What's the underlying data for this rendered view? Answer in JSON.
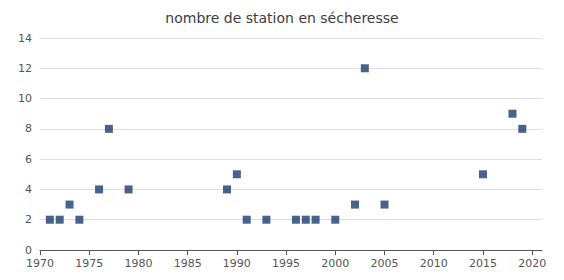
{
  "chart_data": {
    "type": "scatter",
    "title": "nombre de station en sécheresse",
    "x": [
      1971,
      1972,
      1973,
      1974,
      1976,
      1977,
      1979,
      1989,
      1990,
      1991,
      1993,
      1996,
      1997,
      1998,
      2000,
      2002,
      2003,
      2005,
      2015,
      2018,
      2019
    ],
    "values": [
      2,
      2,
      3,
      2,
      4,
      8,
      4,
      4,
      5,
      2,
      2,
      2,
      2,
      2,
      2,
      3,
      12,
      3,
      5,
      9,
      8
    ],
    "color": "#1a3c6e",
    "marker": "square",
    "xlim": [
      1970,
      2021
    ],
    "xticks": [
      1970,
      1975,
      1980,
      1985,
      1990,
      1995,
      2000,
      2005,
      2010,
      2015,
      2020
    ],
    "ylim": [
      0,
      14
    ],
    "yticks": [
      0,
      2,
      4,
      6,
      8,
      10,
      12,
      14
    ],
    "grid": true
  }
}
